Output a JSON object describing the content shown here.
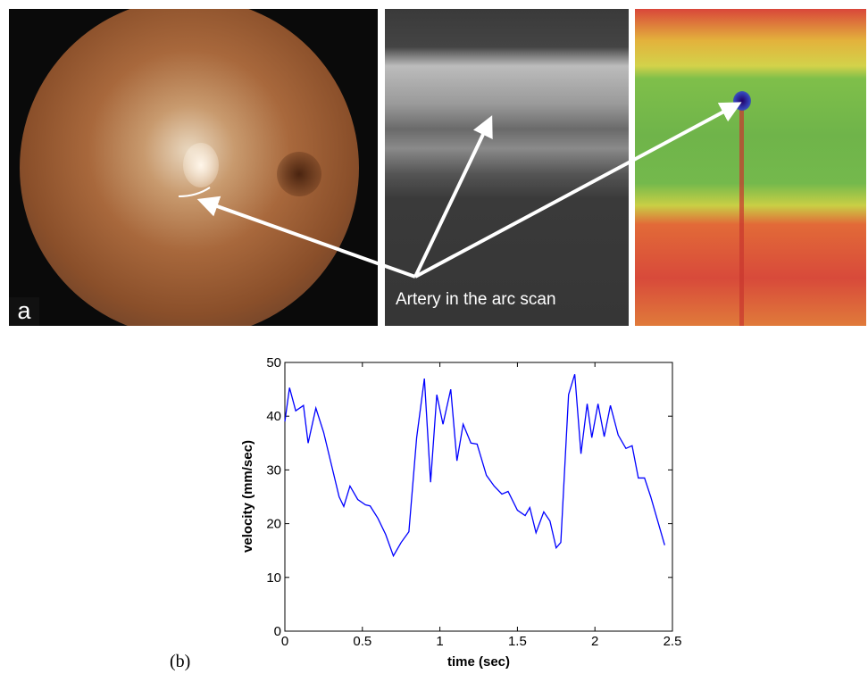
{
  "chart_data": {
    "type": "line",
    "panel_label_top": "a",
    "annotation": "Artery in the arc scan",
    "panel_label_bottom": "(b)",
    "xlabel": "time (sec)",
    "ylabel": "velocity (mm/sec)",
    "x": [
      0.0,
      0.03,
      0.07,
      0.12,
      0.15,
      0.2,
      0.25,
      0.3,
      0.35,
      0.38,
      0.42,
      0.47,
      0.52,
      0.55,
      0.6,
      0.65,
      0.7,
      0.75,
      0.8,
      0.85,
      0.9,
      0.94,
      0.98,
      1.02,
      1.07,
      1.11,
      1.15,
      1.2,
      1.24,
      1.3,
      1.35,
      1.4,
      1.44,
      1.5,
      1.55,
      1.58,
      1.62,
      1.67,
      1.71,
      1.75,
      1.78,
      1.83,
      1.87,
      1.91,
      1.95,
      1.98,
      2.02,
      2.06,
      2.1,
      2.15,
      2.2,
      2.24,
      2.28,
      2.32,
      2.36,
      2.4,
      2.45
    ],
    "series": [
      {
        "color": "#0000ff",
        "values": [
          39,
          45.3,
          41,
          42,
          35,
          41.5,
          37,
          31,
          25,
          23.2,
          27,
          24.5,
          23.5,
          23.3,
          21,
          18,
          14,
          16.5,
          18.5,
          36,
          47,
          27.7,
          44,
          38.5,
          45,
          31.7,
          38.5,
          35,
          34.8,
          29,
          27,
          25.5,
          26,
          22.5,
          21.5,
          23,
          18.3,
          22.2,
          20.5,
          15.5,
          16.5,
          44,
          47.8,
          33,
          42.3,
          36,
          42.3,
          36.2,
          42,
          36.5,
          34,
          34.5,
          28.5,
          28.5,
          25,
          21,
          16
        ]
      }
    ],
    "xlim": [
      0,
      2.5
    ],
    "xticks": [
      0,
      0.5,
      1,
      1.5,
      2,
      2.5
    ],
    "ylim": [
      0,
      50
    ],
    "yticks": [
      0,
      10,
      20,
      30,
      40,
      50
    ]
  }
}
